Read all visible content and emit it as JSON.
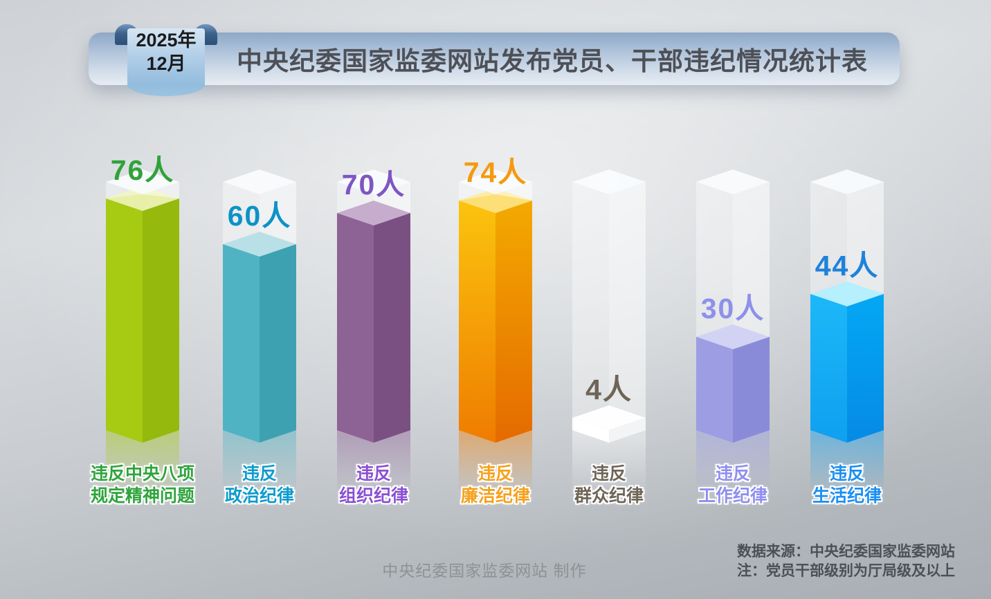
{
  "header": {
    "date_line1": "2025年",
    "date_line2": "12月",
    "title": "中央纪委国家监委网站发布党员、干部违纪情况统计表"
  },
  "chart_data": {
    "type": "bar",
    "title": "中央纪委国家监委网站发布党员、干部违纪情况统计表",
    "unit": "人",
    "y_max": 80,
    "legend_position": "none",
    "grid": false,
    "categories": [
      "违反中央八项规定精神问题",
      "违反政治纪律",
      "违反组织纪律",
      "违反廉洁纪律",
      "违反群众纪律",
      "违反工作纪律",
      "违反生活纪律"
    ],
    "category_lines": [
      [
        "违反中央八项",
        "规定精神问题"
      ],
      [
        "违反",
        "政治纪律"
      ],
      [
        "违反",
        "组织纪律"
      ],
      [
        "违反",
        "廉洁纪律"
      ],
      [
        "违反",
        "群众纪律"
      ],
      [
        "违反",
        "工作纪律"
      ],
      [
        "违反",
        "生活纪律"
      ]
    ],
    "values": [
      76,
      60,
      70,
      74,
      4,
      30,
      44
    ],
    "value_labels": [
      "76人",
      "60人",
      "70人",
      "74人",
      "4人",
      "30人",
      "44人"
    ],
    "bar_colors": [
      {
        "left": [
          "#a7ca12"
        ],
        "right": [
          "#95b90d"
        ],
        "top": "#e7efa8",
        "value_text": "#2fa23a",
        "cat_text": "#2fa43c"
      },
      {
        "left": [
          "#4fb3c4"
        ],
        "right": [
          "#3ea1b2"
        ],
        "top": "#b9e0e7",
        "value_text": "#0c92c8",
        "cat_text": "#0d9bcd"
      },
      {
        "left": [
          "#8d6295"
        ],
        "right": [
          "#795081"
        ],
        "top": "#c6accd",
        "value_text": "#7e56c2",
        "cat_text": "#8a4fd2"
      },
      {
        "left": [
          "#fbc40e",
          "#ef7c00"
        ],
        "right": [
          "#f3aa00",
          "#e56a00"
        ],
        "top": "#fce077",
        "value_text": "#f49a10",
        "cat_text": "#f5a11c"
      },
      {
        "left": [
          "#ffffff"
        ],
        "right": [
          "#f2f4f6"
        ],
        "top": "#fefefe",
        "value_text": "#6e6557",
        "cat_text": "#6e6557"
      },
      {
        "left": [
          "#9c9de3"
        ],
        "right": [
          "#8a8bd8"
        ],
        "top": "#d2d3f4",
        "value_text": "#8e90ea",
        "cat_text": "#8e8ef2"
      },
      {
        "left": [
          "#1cb8f8",
          "#0fa0f0"
        ],
        "right": [
          "#04a8f4",
          "#058ae6"
        ],
        "top": "#b6effd",
        "value_text": "#1e82da",
        "cat_text": "#1b8ff2"
      }
    ]
  },
  "footer": {
    "credit": "中央纪委国家监委网站 制作",
    "source": "数据来源：中央纪委国家监委网站",
    "note": "注：党员干部级别为厅局级及以上"
  }
}
